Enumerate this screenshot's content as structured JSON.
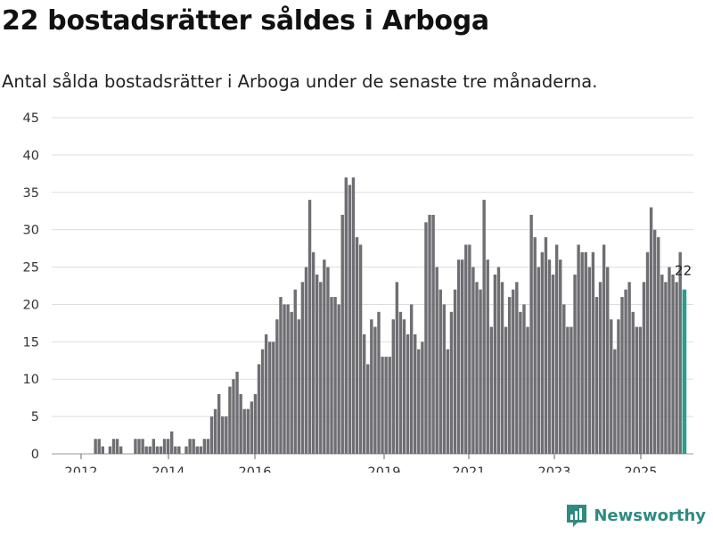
{
  "header": {
    "title": "22 bostadsrätter såldes i Arboga",
    "subtitle": "Antal sålda bostadsrätter i Arboga under de senaste tre månaderna."
  },
  "branding": {
    "name": "Newsworthy",
    "icon": "bar-chart-logo-icon",
    "color": "#2e8b82"
  },
  "chart_data": {
    "type": "bar",
    "title": "22 bostadsrätter såldes i Arboga",
    "subtitle": "Antal sålda bostadsrätter i Arboga under de senaste tre månaderna.",
    "xlabel": "",
    "ylabel": "",
    "ylim": [
      0,
      45
    ],
    "yticks": [
      0,
      5,
      10,
      15,
      20,
      25,
      30,
      35,
      40,
      45
    ],
    "xticks": [
      "2012",
      "2014",
      "2016",
      "2019",
      "2021",
      "2023",
      "2025"
    ],
    "grid": true,
    "bar_color": "#6f6e73",
    "highlight_color": "#2a9d8f",
    "highlight_label": "22",
    "values": [
      0,
      0,
      0,
      0,
      0,
      0,
      0,
      0,
      0,
      0,
      0,
      2,
      2,
      1,
      0,
      1,
      2,
      2,
      1,
      0,
      0,
      0,
      2,
      2,
      2,
      1,
      1,
      2,
      1,
      1,
      2,
      2,
      3,
      1,
      1,
      0,
      1,
      2,
      2,
      1,
      1,
      2,
      2,
      5,
      6,
      8,
      5,
      5,
      9,
      10,
      11,
      8,
      6,
      6,
      7,
      8,
      12,
      14,
      16,
      15,
      15,
      18,
      21,
      20,
      20,
      19,
      22,
      18,
      23,
      25,
      34,
      27,
      24,
      23,
      26,
      25,
      21,
      21,
      20,
      32,
      37,
      36,
      37,
      29,
      28,
      16,
      12,
      18,
      17,
      19,
      13,
      13,
      13,
      18,
      23,
      19,
      18,
      16,
      20,
      16,
      14,
      15,
      31,
      32,
      32,
      25,
      22,
      20,
      14,
      19,
      22,
      26,
      26,
      28,
      28,
      25,
      23,
      22,
      34,
      26,
      17,
      24,
      25,
      23,
      17,
      21,
      22,
      23,
      19,
      20,
      17,
      32,
      29,
      25,
      27,
      29,
      26,
      24,
      28,
      26,
      20,
      17,
      17,
      24,
      28,
      27,
      27,
      25,
      27,
      21,
      23,
      28,
      25,
      18,
      14,
      18,
      21,
      22,
      23,
      19,
      17,
      17,
      23,
      27,
      33,
      30,
      29,
      24,
      23,
      25,
      24,
      23,
      27,
      22
    ]
  }
}
